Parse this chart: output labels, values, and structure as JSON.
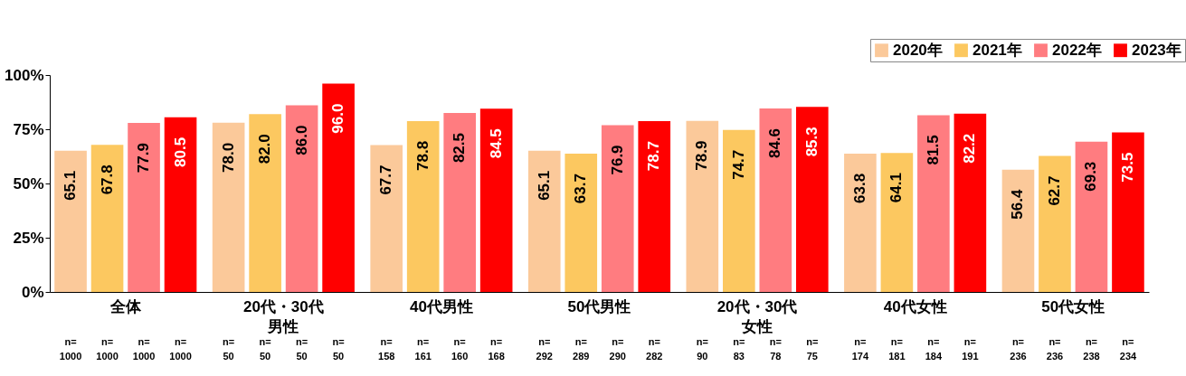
{
  "chart_data": {
    "type": "bar",
    "categories": [
      "全体",
      "20代・30代男性",
      "40代男性",
      "50代男性",
      "20代・30代女性",
      "40代女性",
      "50代女性"
    ],
    "series": [
      {
        "name": "2020年",
        "color": "#fbc99a",
        "values": [
          65.1,
          78.0,
          67.7,
          65.1,
          78.9,
          63.8,
          56.4
        ],
        "value_labels": [
          "65.1",
          "78.0",
          "67.7",
          "65.1",
          "78.9",
          "63.8",
          "56.4"
        ]
      },
      {
        "name": "2021年",
        "color": "#fcc860",
        "values": [
          67.8,
          82.0,
          78.8,
          63.7,
          74.7,
          64.1,
          62.7
        ],
        "value_labels": [
          "67.8",
          "82.0",
          "78.8",
          "63.7",
          "74.7",
          "64.1",
          "62.7"
        ]
      },
      {
        "name": "2022年",
        "color": "#ff7c80",
        "values": [
          77.9,
          86.0,
          82.5,
          76.9,
          84.6,
          81.5,
          69.3
        ],
        "value_labels": [
          "77.9",
          "86.0",
          "82.5",
          "76.9",
          "84.6",
          "81.5",
          "69.3"
        ]
      },
      {
        "name": "2023年",
        "color": "#ff0000",
        "values": [
          80.5,
          96.0,
          84.5,
          78.7,
          85.3,
          82.2,
          73.5
        ],
        "value_labels": [
          "80.5",
          "96.0",
          "84.5",
          "78.7",
          "85.3",
          "82.2",
          "73.5"
        ]
      }
    ],
    "ylim": [
      0,
      100
    ],
    "yticks": [
      {
        "value": 0,
        "label": "0%"
      },
      {
        "value": 25,
        "label": "25%"
      },
      {
        "value": 50,
        "label": "50%"
      },
      {
        "value": 75,
        "label": "75%"
      },
      {
        "value": 100,
        "label": "100%"
      }
    ],
    "legend": "top right",
    "annotations": [
      "n=\n1000",
      "n=\n1000",
      "n=\n1000",
      "n=\n1000",
      "n=\n50",
      "n=\n50",
      "n=\n50",
      "n=\n50",
      "n=\n158",
      "n=\n161",
      "n=\n160",
      "n=\n168",
      "n=\n292",
      "n=\n289",
      "n=\n290",
      "n=\n282",
      "n=\n90",
      "n=\n83",
      "n=\n78",
      "n=\n75",
      "n=\n174",
      "n=\n181",
      "n=\n184",
      "n=\n191",
      "n=\n236",
      "n=\n236",
      "n=\n238",
      "n=\n234"
    ]
  }
}
